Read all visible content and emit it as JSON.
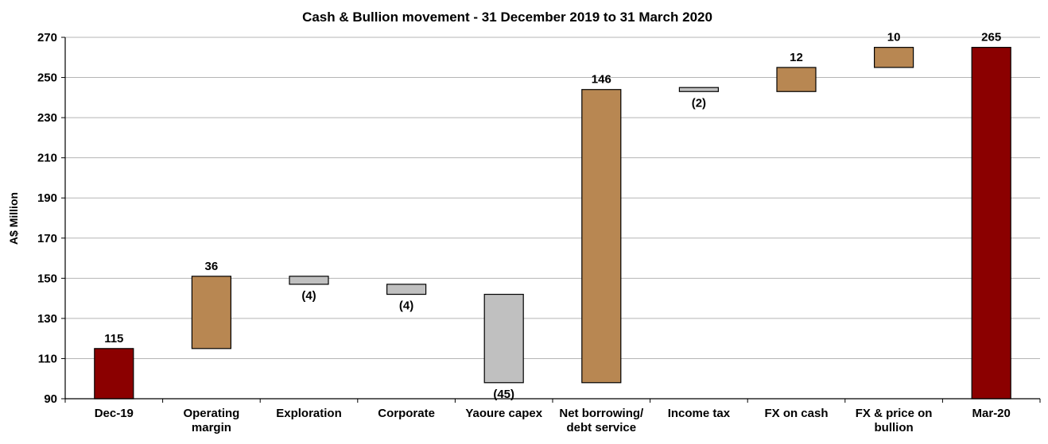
{
  "chart_data": {
    "type": "bar",
    "subtype": "waterfall",
    "title": "Cash & Bullion movement - 31 December 2019 to 31 March 2020",
    "ylabel": "A$ Million",
    "xlabel": "",
    "ylim": [
      90,
      270
    ],
    "yticks": [
      90,
      110,
      130,
      150,
      170,
      190,
      210,
      230,
      250,
      270
    ],
    "grid": true,
    "categories": [
      [
        "Dec-19"
      ],
      [
        "Operating",
        "margin"
      ],
      [
        "Exploration"
      ],
      [
        "Corporate"
      ],
      [
        "Yaoure capex"
      ],
      [
        "Net borrowing/",
        "debt service"
      ],
      [
        "Income tax"
      ],
      [
        "FX on cash"
      ],
      [
        "FX & price on",
        "bullion"
      ],
      [
        "Mar-20"
      ]
    ],
    "bars": [
      {
        "kind": "total",
        "start": 90,
        "end": 115,
        "label": "115"
      },
      {
        "kind": "increase",
        "start": 115,
        "end": 151,
        "label": "36"
      },
      {
        "kind": "decrease",
        "start": 151,
        "end": 147,
        "label": "(4)"
      },
      {
        "kind": "decrease",
        "start": 147,
        "end": 142,
        "label": "(4)"
      },
      {
        "kind": "decrease",
        "start": 142,
        "end": 98,
        "label": "(45)"
      },
      {
        "kind": "increase",
        "start": 98,
        "end": 244,
        "label": "146"
      },
      {
        "kind": "decrease",
        "start": 245,
        "end": 243,
        "label": "(2)"
      },
      {
        "kind": "increase",
        "start": 243,
        "end": 255,
        "label": "12"
      },
      {
        "kind": "increase",
        "start": 255,
        "end": 265,
        "label": "10"
      },
      {
        "kind": "total",
        "start": 90,
        "end": 265,
        "label": "265"
      }
    ],
    "colors": {
      "total": "#8b0000",
      "increase": "#b88752",
      "decrease": "#c0c0c0",
      "grid": "#b5b5b5",
      "border": "#000000"
    }
  }
}
